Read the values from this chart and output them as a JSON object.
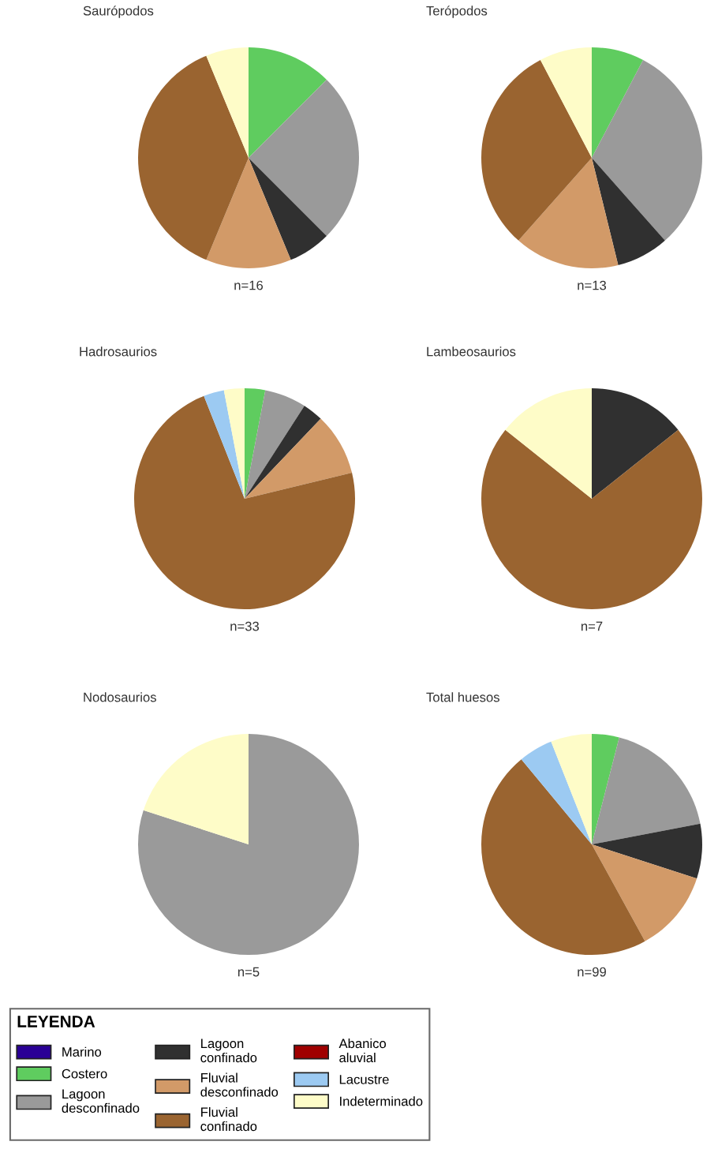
{
  "chart_data": [
    {
      "type": "pie",
      "title": "Saurópodos",
      "categories": [
        "Marino",
        "Costero",
        "Lagoon\ndesconfinado",
        "Lagoon\nconfinado",
        "Fluvial\ndesconfinado",
        "Fluvial\nconfinado",
        "Abanico\naluvial",
        "Lacustre",
        "Indeterminado"
      ],
      "values": [
        0,
        12.5,
        25,
        6.25,
        12.5,
        37.5,
        0,
        0,
        6.25
      ],
      "colors": [
        "#2a0096",
        "#5fcc5f",
        "#9a9a9a",
        "#303030",
        "#d29a68",
        "#9a6430",
        "#a00000",
        "#9ccaf2",
        "#fefcc8"
      ],
      "annotations": [
        "n=16"
      ],
      "legend": "bottom left",
      "legend_title": "LEYENDA"
    },
    {
      "type": "pie",
      "title": "Terópodos",
      "values": [
        0,
        7.7,
        30.8,
        7.7,
        15.4,
        30.8,
        0,
        0,
        7.7
      ],
      "colors": [
        "#2a0096",
        "#5fcc5f",
        "#9a9a9a",
        "#303030",
        "#d29a68",
        "#9a6430",
        "#a00000",
        "#9ccaf2",
        "#fefcc8"
      ],
      "annotations": [
        "n=13"
      ]
    },
    {
      "type": "pie",
      "title": "Hadrosaurios",
      "values": [
        0,
        3,
        6.1,
        3,
        9.1,
        72.7,
        0,
        3,
        3
      ],
      "colors": [
        "#2a0096",
        "#5fcc5f",
        "#9a9a9a",
        "#303030",
        "#d29a68",
        "#9a6430",
        "#a00000",
        "#9ccaf2",
        "#fefcc8"
      ],
      "annotations": [
        "n=33"
      ]
    },
    {
      "type": "pie",
      "title": "Lambeosaurios",
      "values": [
        0,
        0,
        0,
        14.3,
        0,
        71.4,
        0,
        0,
        14.3
      ],
      "colors": [
        "#2a0096",
        "#5fcc5f",
        "#9a9a9a",
        "#303030",
        "#d29a68",
        "#9a6430",
        "#a00000",
        "#9ccaf2",
        "#fefcc8"
      ],
      "annotations": [
        "n=7"
      ]
    },
    {
      "type": "pie",
      "title": "Nodosaurios",
      "values": [
        0,
        0,
        80,
        0,
        0,
        0,
        0,
        0,
        20
      ],
      "colors": [
        "#2a0096",
        "#5fcc5f",
        "#9a9a9a",
        "#303030",
        "#d29a68",
        "#9a6430",
        "#a00000",
        "#9ccaf2",
        "#fefcc8"
      ],
      "annotations": [
        "n=5"
      ]
    },
    {
      "type": "pie",
      "title": "Total huesos",
      "values": [
        0,
        4,
        18,
        8,
        12,
        47,
        0,
        5,
        6
      ],
      "colors": [
        "#2a0096",
        "#5fcc5f",
        "#9a9a9a",
        "#303030",
        "#d29a68",
        "#9a6430",
        "#a00000",
        "#9ccaf2",
        "#fefcc8"
      ],
      "annotations": [
        "n=99"
      ]
    }
  ]
}
